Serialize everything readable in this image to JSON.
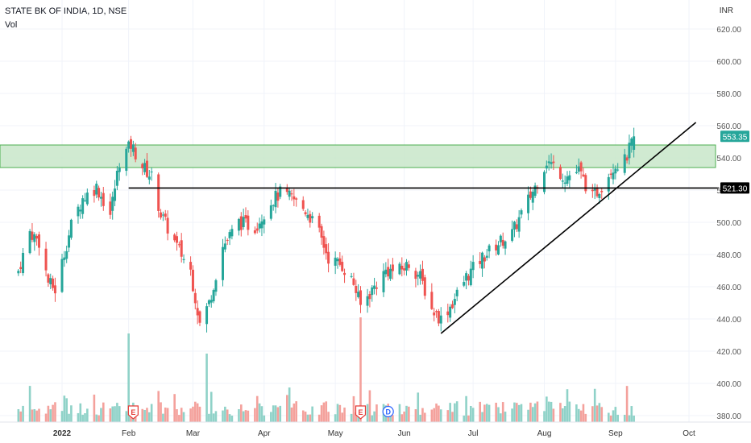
{
  "header": {
    "title": "STATE BK OF INDIA, 1D, NSE",
    "volume_label": "Vol",
    "currency": "INR"
  },
  "price_axis": {
    "ticks": [
      "620.00",
      "600.00",
      "580.00",
      "560.00",
      "540.00",
      "520.00",
      "500.00",
      "480.00",
      "460.00",
      "440.00",
      "420.00",
      "400.00",
      "380.00"
    ],
    "last_price_label": "553.35",
    "level_label": "521.30"
  },
  "time_axis": {
    "labels": [
      "2022",
      "Feb",
      "Mar",
      "Apr",
      "May",
      "Jun",
      "Jul",
      "Aug",
      "Sep",
      "Oct"
    ]
  },
  "event_markers": {
    "earnings_label": "E",
    "dividend_label": "D"
  },
  "colors": {
    "up": "#26a69a",
    "down": "#ef5350",
    "volume_up": "#8fd2c8",
    "volume_down": "#f4a19c",
    "zone_fill": "#c8e6c9",
    "zone_border": "#4caf50",
    "line": "#000000",
    "grid": "#f0f3fa",
    "axis_text": "#131722"
  },
  "chart_data": {
    "type": "candlestick",
    "symbol": "STATE BK OF INDIA",
    "interval": "1D",
    "exchange": "NSE",
    "currency": "INR",
    "ylim": [
      375,
      630
    ],
    "ohlc_waypoints": [
      {
        "date": "2021-12-15",
        "close": 470
      },
      {
        "date": "2021-12-20",
        "close": 494
      },
      {
        "date": "2021-12-24",
        "close": 488
      },
      {
        "date": "2021-12-28",
        "close": 463
      },
      {
        "date": "2021-12-31",
        "close": 458
      },
      {
        "date": "2022-01-03",
        "close": 475
      },
      {
        "date": "2022-01-07",
        "close": 498
      },
      {
        "date": "2022-01-12",
        "close": 515
      },
      {
        "date": "2022-01-18",
        "close": 522
      },
      {
        "date": "2022-01-24",
        "close": 505
      },
      {
        "date": "2022-01-28",
        "close": 538
      },
      {
        "date": "2022-02-02",
        "close": 548
      },
      {
        "date": "2022-02-07",
        "close": 535
      },
      {
        "date": "2022-02-11",
        "close": 528
      },
      {
        "date": "2022-02-15",
        "close": 505
      },
      {
        "date": "2022-02-22",
        "close": 485
      },
      {
        "date": "2022-02-28",
        "close": 470
      },
      {
        "date": "2022-03-04",
        "close": 437
      },
      {
        "date": "2022-03-08",
        "close": 450
      },
      {
        "date": "2022-03-14",
        "close": 485
      },
      {
        "date": "2022-03-21",
        "close": 500
      },
      {
        "date": "2022-03-28",
        "close": 497
      },
      {
        "date": "2022-04-04",
        "close": 513
      },
      {
        "date": "2022-04-08",
        "close": 518
      },
      {
        "date": "2022-04-13",
        "close": 515
      },
      {
        "date": "2022-04-20",
        "close": 506
      },
      {
        "date": "2022-04-25",
        "close": 493
      },
      {
        "date": "2022-04-29",
        "close": 478
      },
      {
        "date": "2022-05-05",
        "close": 473
      },
      {
        "date": "2022-05-10",
        "close": 462
      },
      {
        "date": "2022-05-13",
        "close": 448
      },
      {
        "date": "2022-05-18",
        "close": 458
      },
      {
        "date": "2022-05-24",
        "close": 470
      },
      {
        "date": "2022-05-30",
        "close": 470
      },
      {
        "date": "2022-06-03",
        "close": 474
      },
      {
        "date": "2022-06-08",
        "close": 466
      },
      {
        "date": "2022-06-13",
        "close": 446
      },
      {
        "date": "2022-06-17",
        "close": 440
      },
      {
        "date": "2022-06-22",
        "close": 450
      },
      {
        "date": "2022-06-28",
        "close": 466
      },
      {
        "date": "2022-07-05",
        "close": 478
      },
      {
        "date": "2022-07-12",
        "close": 487
      },
      {
        "date": "2022-07-18",
        "close": 493
      },
      {
        "date": "2022-07-22",
        "close": 505
      },
      {
        "date": "2022-07-28",
        "close": 522
      },
      {
        "date": "2022-08-02",
        "close": 538
      },
      {
        "date": "2022-08-05",
        "close": 535
      },
      {
        "date": "2022-08-10",
        "close": 528
      },
      {
        "date": "2022-08-16",
        "close": 532
      },
      {
        "date": "2022-08-22",
        "close": 515
      },
      {
        "date": "2022-08-26",
        "close": 523
      },
      {
        "date": "2022-08-31",
        "close": 535
      },
      {
        "date": "2022-09-05",
        "close": 538
      },
      {
        "date": "2022-09-07",
        "close": 545
      },
      {
        "date": "2022-09-09",
        "close": 553.35
      }
    ],
    "horizontal_zone": {
      "low": 534,
      "high": 548
    },
    "horizontal_line": {
      "price": 521.3,
      "from": "2022-02-01",
      "to_edge": true
    },
    "trend_line": {
      "start": {
        "date": "2022-06-17",
        "price": 431
      },
      "end": {
        "date": "2022-10-06",
        "price": 562
      }
    },
    "last_price": 553.35,
    "volume_note": "Volume histogram in lower pane, colored by candle direction",
    "events": [
      {
        "type": "earnings",
        "date": "2022-02-03"
      },
      {
        "type": "earnings",
        "date": "2022-05-13"
      },
      {
        "type": "dividend",
        "date": "2022-05-25"
      }
    ]
  }
}
